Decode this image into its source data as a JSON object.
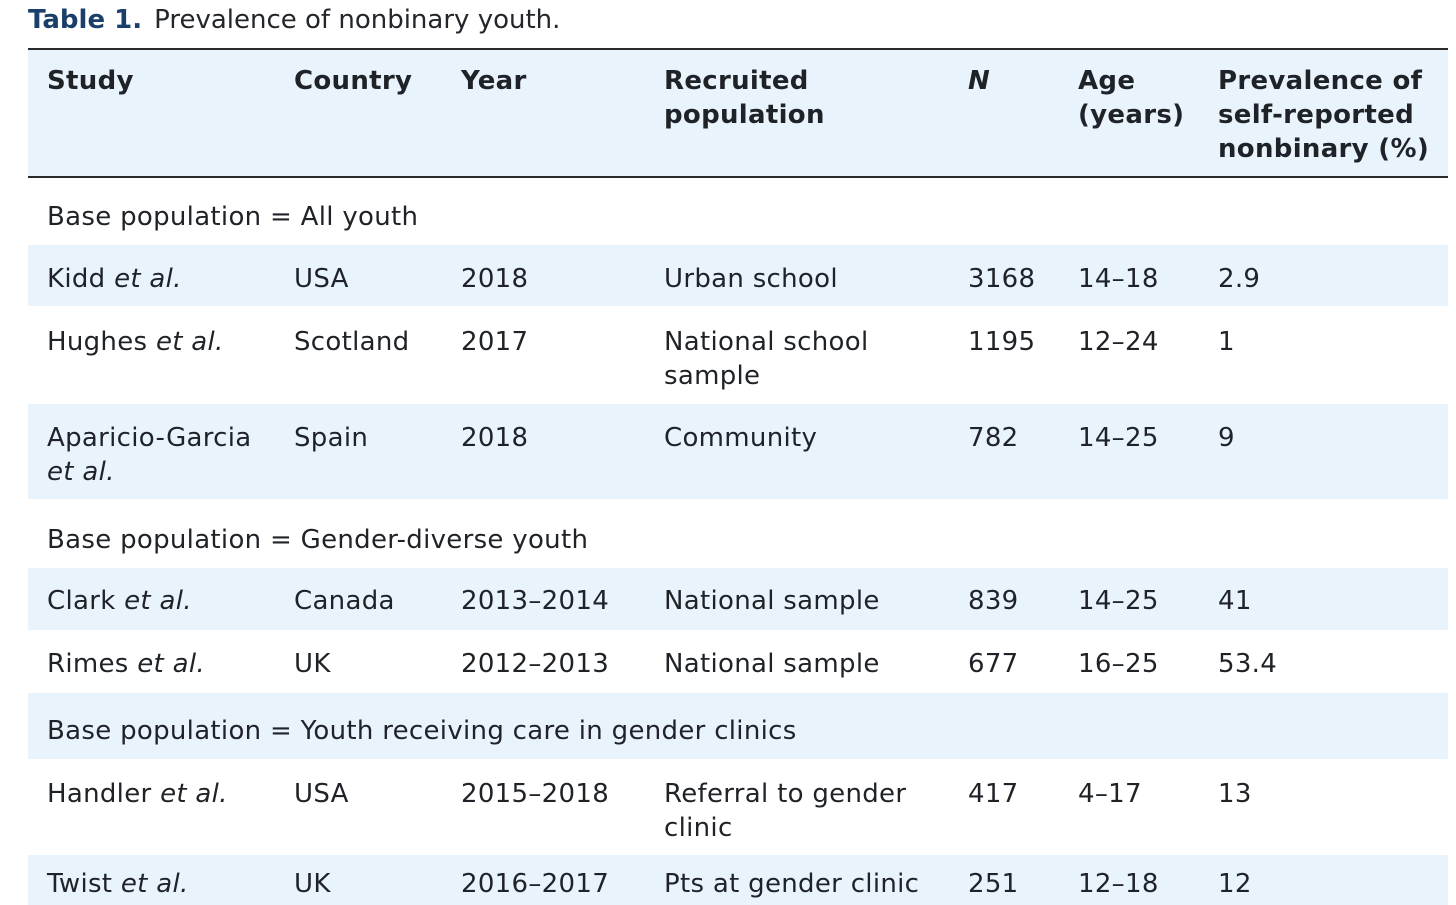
{
  "caption": {
    "label": "Table 1.",
    "text": "Prevalence of nonbinary youth."
  },
  "headers": {
    "study": "Study",
    "country": "Country",
    "year": "Year",
    "recruited_1": "Recruited",
    "recruited_2": "population",
    "n": "N",
    "age_1": "Age",
    "age_2": "(years)",
    "prev_1": "Prevalence of",
    "prev_2": "self-reported",
    "prev_3": "nonbinary (%)"
  },
  "etal": "et al.",
  "sections": [
    "Base population = All youth",
    "Base population = Gender-diverse youth",
    "Base population = Youth receiving care in gender clinics"
  ],
  "rows": [
    {
      "study": "Kidd",
      "country": "USA",
      "year": "2018",
      "pop1": "Urban school",
      "pop2": "",
      "n": "3168",
      "age": "14–18",
      "prev": "2.9"
    },
    {
      "study": "Hughes",
      "country": "Scotland",
      "year": "2017",
      "pop1": "National school",
      "pop2": "sample",
      "n": "1195",
      "age": "12–24",
      "prev": "1"
    },
    {
      "study": "Aparicio-Garcia",
      "country": "Spain",
      "year": "2018",
      "pop1": "Community",
      "pop2": "",
      "n": "782",
      "age": "14–25",
      "prev": "9"
    },
    {
      "study": "Clark",
      "country": "Canada",
      "year": "2013–2014",
      "pop1": "National sample",
      "pop2": "",
      "n": "839",
      "age": "14–25",
      "prev": "41"
    },
    {
      "study": "Rimes",
      "country": "UK",
      "year": "2012–2013",
      "pop1": "National sample",
      "pop2": "",
      "n": "677",
      "age": "16–25",
      "prev": "53.4"
    },
    {
      "study": "Handler",
      "country": "USA",
      "year": "2015–2018",
      "pop1": "Referral to gender",
      "pop2": "clinic",
      "n": "417",
      "age": "4–17",
      "prev": "13"
    },
    {
      "study": "Twist",
      "country": "UK",
      "year": "2016–2017",
      "pop1": "Pts at gender clinic",
      "pop2": "",
      "n": "251",
      "age": "12–18",
      "prev": "12"
    }
  ]
}
